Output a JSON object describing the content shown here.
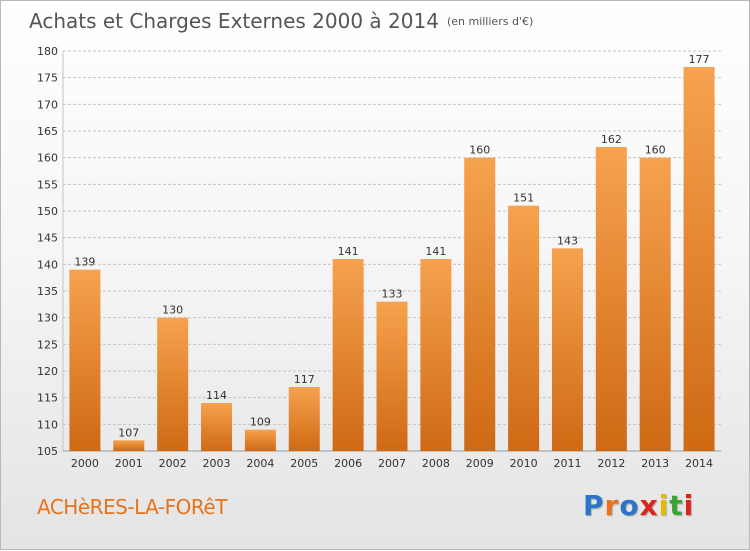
{
  "header": {
    "title": "Achats et Charges Externes 2000 à 2014",
    "unit": "(en milliers d'€)"
  },
  "commune": "ACHèRES-LA-FORêT",
  "logo": {
    "text": "Proxiti",
    "letters": [
      "P",
      "r",
      "o",
      "x",
      "i",
      "t",
      "i"
    ],
    "colors": [
      "#2b74c7",
      "#e8731a",
      "#2b74c7",
      "#d9261c",
      "#e8b800",
      "#3aa335",
      "#d9261c"
    ]
  },
  "colors": {
    "bar_top": "#f6a24e",
    "bar_bottom": "#cf6914",
    "grid": "#c4c4c4",
    "axis_text": "#333333",
    "commune": "#e8731a"
  },
  "chart_data": {
    "type": "bar",
    "title": "Achats et Charges Externes 2000 à 2014",
    "subtitle": "(en milliers d'€)",
    "categories": [
      "2000",
      "2001",
      "2002",
      "2003",
      "2004",
      "2005",
      "2006",
      "2007",
      "2008",
      "2009",
      "2010",
      "2011",
      "2012",
      "2013",
      "2014"
    ],
    "values": [
      139,
      107,
      130,
      114,
      109,
      117,
      141,
      133,
      141,
      160,
      151,
      143,
      162,
      160,
      177
    ],
    "ylim": [
      105,
      180
    ],
    "yticks": [
      105,
      110,
      115,
      120,
      125,
      130,
      135,
      140,
      145,
      150,
      155,
      160,
      165,
      170,
      175,
      180
    ],
    "grid": true,
    "data_labels": true
  }
}
